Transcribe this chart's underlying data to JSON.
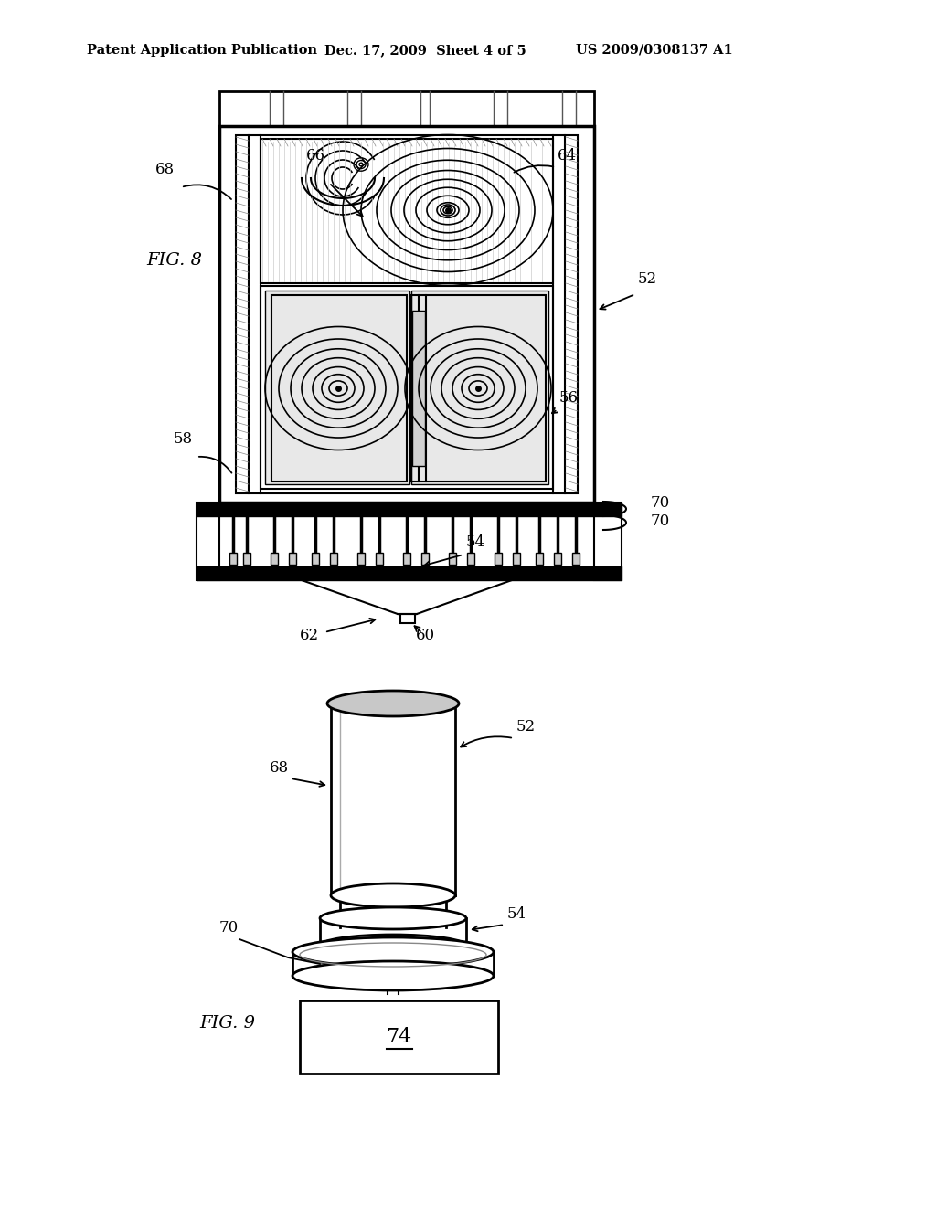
{
  "bg_color": "#ffffff",
  "line_color": "#000000",
  "header_text": "Patent Application Publication",
  "header_date": "Dec. 17, 2009  Sheet 4 of 5",
  "header_patent": "US 2009/0308137 A1",
  "fig8_label": "FIG. 8",
  "fig9_label": "FIG. 9",
  "labels": {
    "52": "52",
    "54": "54",
    "56": "56",
    "58": "58",
    "60": "60",
    "62": "62",
    "64": "64",
    "66": "66",
    "68": "68",
    "70": "70",
    "74": "74"
  }
}
